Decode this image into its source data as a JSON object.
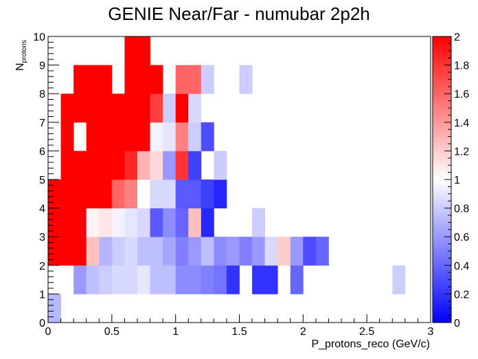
{
  "chart_data": {
    "type": "heatmap",
    "title": "GENIE Near/Far - numubar 2p2h",
    "xlabel": "P_protons_reco (GeV/c)",
    "ylabel_main": "N",
    "ylabel_sub": "protons",
    "xlim": [
      0,
      3
    ],
    "ylim": [
      0,
      10
    ],
    "zlim": [
      0,
      2
    ],
    "x_bin_width": 0.1,
    "y_bin_width": 1,
    "x_tick_labels": [
      "0",
      "0.5",
      "1",
      "1.5",
      "2",
      "2.5",
      "3"
    ],
    "y_tick_labels": [
      "0",
      "1",
      "2",
      "3",
      "4",
      "5",
      "6",
      "7",
      "8",
      "9",
      "10"
    ],
    "z_tick_labels": [
      "0",
      "0.2",
      "0.4",
      "0.6",
      "0.8",
      "1",
      "1.2",
      "1.4",
      "1.6",
      "1.8",
      "2"
    ],
    "colormap": [
      "#0000ff",
      "#ffffff",
      "#ff0000"
    ],
    "grid": false,
    "colorbar": "right",
    "rows": [
      {
        "y": 0,
        "x0": 0.0,
        "values": [
          0.72
        ]
      },
      {
        "y": 1,
        "x0": 0.2,
        "values": [
          0.6,
          0.75,
          0.8,
          0.85,
          0.85,
          0.9,
          0.75,
          0.75,
          0.55,
          0.55,
          0.5,
          0.45,
          0.2,
          null,
          0.2,
          0.2,
          null,
          0.4
        ]
      },
      {
        "y": 1,
        "x0": 2.7,
        "values": [
          0.8
        ]
      },
      {
        "y": 2,
        "x0": 0.0,
        "values": [
          2,
          2,
          2,
          1.25,
          0.7,
          0.8,
          0.85,
          0.75,
          0.75,
          0.65,
          0.5,
          0.6,
          0.75,
          0.55,
          0.6,
          0.5,
          0.6,
          0.85,
          1.2,
          0.6,
          0.3,
          0.4
        ]
      },
      {
        "y": 3,
        "x0": 0.0,
        "values": [
          2,
          2,
          2,
          1.05,
          1.1,
          0.95,
          0.9,
          0.85,
          0.35,
          0.55,
          0.4,
          1.25,
          0.15
        ]
      },
      {
        "y": 3,
        "x0": 1.6,
        "values": [
          0.8
        ]
      },
      {
        "y": 4,
        "x0": 0.0,
        "values": [
          2,
          2,
          2,
          2,
          2,
          1.6,
          1.5,
          1.0,
          0.85,
          0.85,
          0.35,
          0.35,
          0.25,
          0.15
        ]
      },
      {
        "y": 5,
        "x0": 0.1,
        "values": [
          2,
          2,
          2,
          2,
          2,
          1.85,
          1.3,
          1.15,
          0.6,
          1.8,
          0.25
        ]
      },
      {
        "y": 5,
        "x0": 1.3,
        "values": [
          0.8
        ]
      },
      {
        "y": 6,
        "x0": 0.0,
        "values": [
          null,
          2,
          null,
          2,
          2,
          2,
          2,
          2,
          0.95,
          0.9,
          1.5,
          0.8,
          0.3
        ]
      },
      {
        "y": 7,
        "x0": 0.1,
        "values": [
          2,
          2,
          2,
          2,
          2,
          2,
          2,
          1.75,
          0.8,
          2,
          0.85
        ]
      },
      {
        "y": 8,
        "x0": 0.2,
        "values": [
          2,
          2,
          2,
          null,
          2,
          2,
          2,
          null,
          1.6,
          1.6,
          0.8
        ]
      },
      {
        "y": 8,
        "x0": 1.5,
        "values": [
          0.8
        ]
      },
      {
        "y": 9,
        "x0": 0.6,
        "values": [
          2,
          2
        ]
      }
    ]
  }
}
